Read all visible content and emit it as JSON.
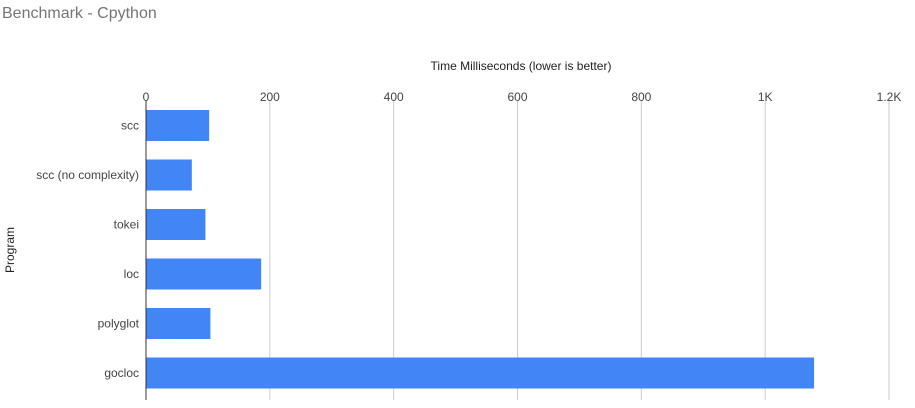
{
  "chart_data": {
    "type": "bar",
    "orientation": "horizontal",
    "title": "Benchmark - Cpython",
    "xlabel": "Time Milliseconds (lower is better)",
    "ylabel": "Program",
    "categories": [
      "scc",
      "scc (no complexity)",
      "tokei",
      "loc",
      "polyglot",
      "gocloc"
    ],
    "values": [
      102,
      74,
      96,
      186,
      104,
      1079
    ],
    "xlim": [
      0,
      1200
    ],
    "x_ticks": [
      0,
      200,
      400,
      600,
      800,
      1000,
      1200
    ],
    "x_tick_labels": [
      "0",
      "200",
      "400",
      "600",
      "800",
      "1K",
      "1.2K"
    ],
    "x_axis_position": "top",
    "grid": true,
    "bar_color": "#4285f4",
    "legend": "none"
  }
}
